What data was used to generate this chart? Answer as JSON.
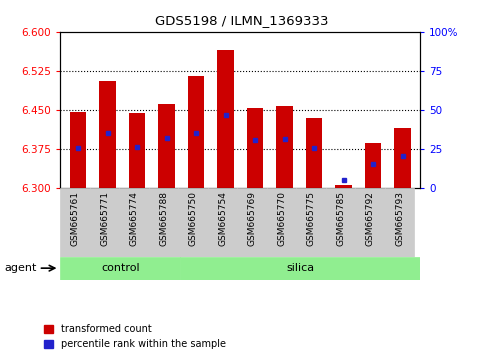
{
  "title": "GDS5198 / ILMN_1369333",
  "samples": [
    "GSM665761",
    "GSM665771",
    "GSM665774",
    "GSM665788",
    "GSM665750",
    "GSM665754",
    "GSM665769",
    "GSM665770",
    "GSM665775",
    "GSM665785",
    "GSM665792",
    "GSM665793"
  ],
  "bar_bottoms": [
    6.3,
    6.3,
    6.3,
    6.3,
    6.3,
    6.3,
    6.3,
    6.3,
    6.3,
    6.3,
    6.3,
    6.3
  ],
  "bar_tops": [
    6.445,
    6.505,
    6.443,
    6.462,
    6.515,
    6.565,
    6.453,
    6.458,
    6.435,
    6.305,
    6.385,
    6.415
  ],
  "blue_values": [
    6.377,
    6.405,
    6.378,
    6.395,
    6.405,
    6.44,
    6.392,
    6.393,
    6.376,
    6.315,
    6.345,
    6.36
  ],
  "n_control": 4,
  "n_silica": 8,
  "ylim_left": [
    6.3,
    6.6
  ],
  "ylim_right": [
    0,
    100
  ],
  "yticks_left": [
    6.3,
    6.375,
    6.45,
    6.525,
    6.6
  ],
  "yticks_right": [
    0,
    25,
    50,
    75,
    100
  ],
  "hlines": [
    6.375,
    6.45,
    6.525
  ],
  "bar_color": "#cc0000",
  "blue_color": "#2222cc",
  "gray_box_color": "#cccccc",
  "green_color": "#90EE90",
  "agent_label": "agent",
  "control_label": "control",
  "silica_label": "silica",
  "legend_bar": "transformed count",
  "legend_blue": "percentile rank within the sample",
  "bar_width": 0.55
}
